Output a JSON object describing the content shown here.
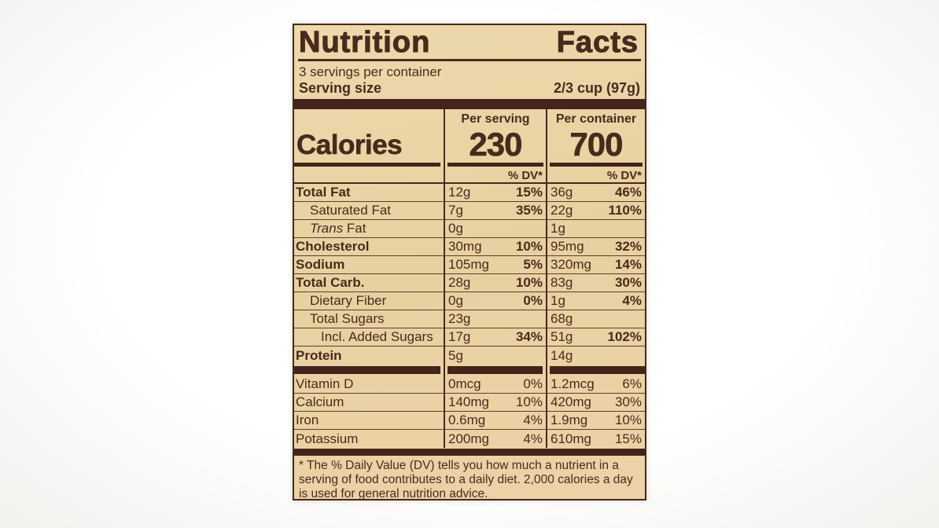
{
  "label": {
    "colors": {
      "background": "#e8d2a3",
      "ink": "#49291b",
      "bar": "#43231a"
    },
    "title": "Nutrition Facts",
    "title_words": [
      "Nutrition",
      "Facts"
    ],
    "servings_per_container": "3 servings per container",
    "serving_size_label": "Serving size",
    "serving_size_value": "2/3 cup (97g)",
    "column_headers": {
      "per_serving": "Per serving",
      "per_container": "Per container"
    },
    "calories": {
      "label": "Calories",
      "per_serving": "230",
      "per_container": "700"
    },
    "dv_header_serving": "% DV*",
    "dv_header_container": "% DV*",
    "nutrients": [
      {
        "label": "Total Fat",
        "serving_amount": "12g",
        "serving_dv": "15%",
        "container_amount": "36g",
        "container_dv": "46%"
      },
      {
        "label": "Saturated Fat",
        "serving_amount": "7g",
        "serving_dv": "35%",
        "container_amount": "22g",
        "container_dv": "110%"
      },
      {
        "label_italic": "Trans",
        "label_rest": " Fat",
        "serving_amount": "0g",
        "serving_dv": "",
        "container_amount": "1g",
        "container_dv": ""
      },
      {
        "label": "Cholesterol",
        "serving_amount": "30mg",
        "serving_dv": "10%",
        "container_amount": "95mg",
        "container_dv": "32%"
      },
      {
        "label": "Sodium",
        "serving_amount": "105mg",
        "serving_dv": "5%",
        "container_amount": "320mg",
        "container_dv": "14%"
      },
      {
        "label": "Total Carb.",
        "serving_amount": "28g",
        "serving_dv": "10%",
        "container_amount": "83g",
        "container_dv": "30%"
      },
      {
        "label": "Dietary Fiber",
        "serving_amount": "0g",
        "serving_dv": "0%",
        "container_amount": "1g",
        "container_dv": "4%"
      },
      {
        "label": "Total Sugars",
        "serving_amount": "23g",
        "serving_dv": "",
        "container_amount": "68g",
        "container_dv": ""
      },
      {
        "label": "Incl. Added Sugars",
        "serving_amount": "17g",
        "serving_dv": "34%",
        "container_amount": "51g",
        "container_dv": "102%"
      },
      {
        "label": "Protein",
        "serving_amount": "5g",
        "serving_dv": "",
        "container_amount": "14g",
        "container_dv": ""
      }
    ],
    "vitamins": [
      {
        "label": "Vitamin D",
        "serving_amount": "0mcg",
        "serving_dv": "0%",
        "container_amount": "1.2mcg",
        "container_dv": "6%"
      },
      {
        "label": "Calcium",
        "serving_amount": "140mg",
        "serving_dv": "10%",
        "container_amount": "420mg",
        "container_dv": "30%"
      },
      {
        "label": "Iron",
        "serving_amount": "0.6mg",
        "serving_dv": "4%",
        "container_amount": "1.9mg",
        "container_dv": "10%"
      },
      {
        "label": "Potassium",
        "serving_amount": "200mg",
        "serving_dv": "4%",
        "container_amount": "610mg",
        "container_dv": "15%"
      }
    ],
    "footnote": "* The % Daily Value (DV) tells you how much a nutrient in a serving of food contributes to a daily diet. 2,000 calories a day is used for general nutrition advice."
  }
}
